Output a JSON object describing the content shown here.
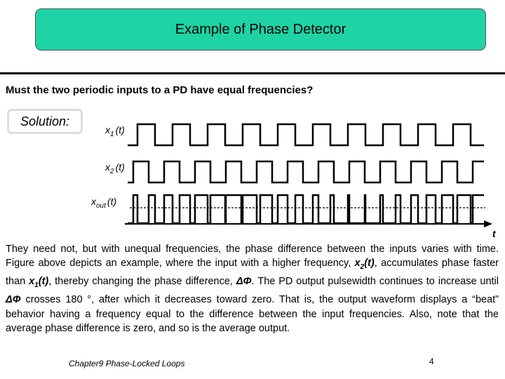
{
  "header": {
    "title": "Example of Phase Detector"
  },
  "question": "Must the two periodic inputs to a PD have equal frequencies?",
  "solution_label": "Solution:",
  "diagram": {
    "labels": [
      {
        "base": "x",
        "sub": "1",
        "arg": "(t)"
      },
      {
        "base": "x",
        "sub": "2",
        "arg": "(t)"
      },
      {
        "base": "x",
        "sub": "out",
        "arg": "(t)"
      }
    ],
    "axis_label": "t"
  },
  "body": {
    "runs": [
      {
        "text": "They need not, but with unequal frequencies, the phase difference between the inputs varies with time. Figure above depicts an example, where the input with a higher frequency, ",
        "style": "normal"
      },
      {
        "text": "x",
        "style": "bi"
      },
      {
        "text": "2",
        "style": "bi-sub"
      },
      {
        "text": "(t)",
        "style": "bi"
      },
      {
        "text": ", accumulates phase faster than ",
        "style": "normal"
      },
      {
        "text": "x",
        "style": "bi"
      },
      {
        "text": "1",
        "style": "bi-sub"
      },
      {
        "text": "(t)",
        "style": "bi"
      },
      {
        "text": ", thereby changing the phase difference, ",
        "style": "normal"
      },
      {
        "text": "ΔΦ",
        "style": "bi"
      },
      {
        "text": ". The PD output pulsewidth continues to increase until ",
        "style": "normal"
      },
      {
        "text": "ΔΦ",
        "style": "bi"
      },
      {
        "text": " crosses 180 °, after which it decreases toward zero. That is, the output waveform displays a “beat” behavior having a frequency equal to the difference between the input frequencies. Also, note that the average phase difference is zero, and so is the average output.",
        "style": "normal"
      }
    ]
  },
  "footer": {
    "chapter": "Chapter9 Phase-Locked Loops",
    "page": "4"
  }
}
